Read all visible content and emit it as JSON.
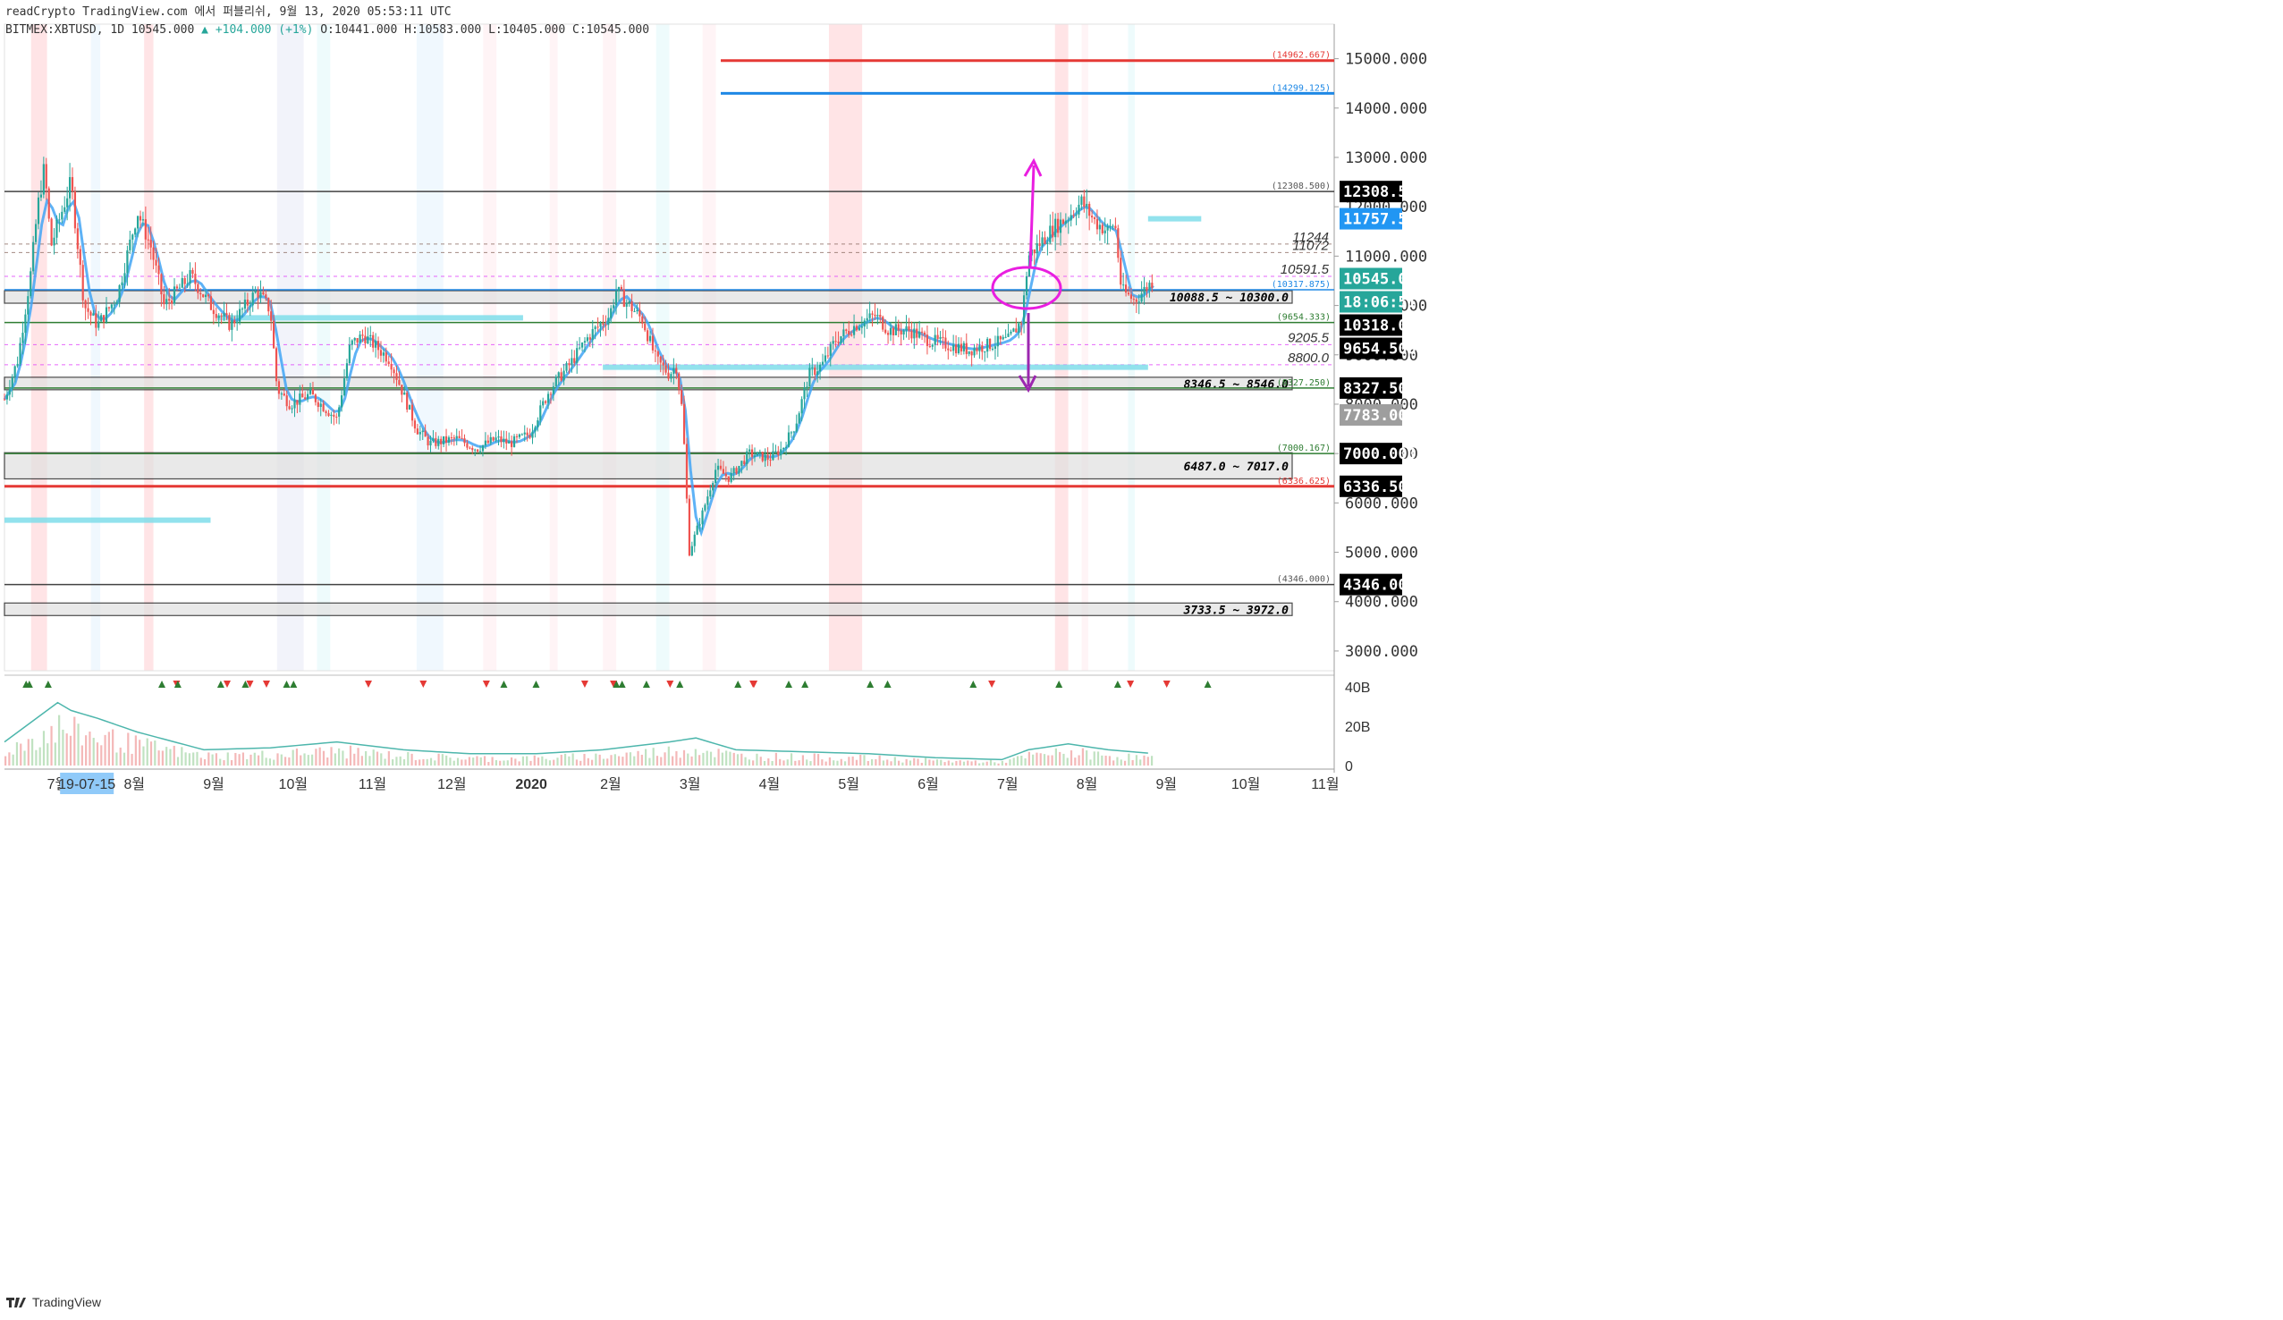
{
  "header": {
    "line1": "readCrypto TradingView.com 에서 퍼블리쉬, 9월 13, 2020 05:53:11 UTC",
    "symbol": "BITMEX:XBTUSD, 1D",
    "last": "10545.000",
    "change": "▲ +104.000 (+1%)",
    "ohlc": "O:10441.000 H:10583.000 L:10405.000 C:10545.000"
  },
  "footer": {
    "brand": "TradingView"
  },
  "chart_data": {
    "type": "candlestick",
    "symbol": "BITMEX:XBTUSD",
    "timeframe": "1D",
    "x_tick_labels": [
      "7월",
      "19-07-15",
      "8월",
      "9월",
      "10월",
      "11월",
      "12월",
      "2020",
      "2월",
      "3월",
      "4월",
      "5월",
      "6월",
      "7월",
      "8월",
      "9월",
      "10월",
      "11월"
    ],
    "y_ticks": [
      "15000.000",
      "14000.000",
      "13000.000",
      "12000.000",
      "11000.000",
      "10000.000",
      "9000.000",
      "8000.000",
      "7000.000",
      "6000.000",
      "5000.000",
      "4000.000",
      "3000.000"
    ],
    "ylim": [
      2600,
      15700
    ],
    "volume_ticks": [
      "40B",
      "20B",
      "0"
    ],
    "price_badges": [
      {
        "label": "12308.500",
        "value": 12308.5,
        "color": "#000000"
      },
      {
        "label": "11757.500",
        "value": 11757.5,
        "color": "#2196f3"
      },
      {
        "label": "10545.000",
        "value": 10545.0,
        "color": "#26a69a"
      },
      {
        "label": "18:06:51",
        "value": 10300.0,
        "color": "#26a69a"
      },
      {
        "label": "10318.000",
        "value": 10060.0,
        "color": "#000000"
      },
      {
        "label": "9654.500",
        "value": 9654.5,
        "color": "#000000"
      },
      {
        "label": "8327.500",
        "value": 8327.5,
        "color": "#000000"
      },
      {
        "label": "7783.000",
        "value": 7783.0,
        "color": "#9e9e9e"
      },
      {
        "label": "7000.000",
        "value": 7000.0,
        "color": "#000000"
      },
      {
        "label": "6336.500",
        "value": 6336.5,
        "color": "#000000"
      },
      {
        "label": "4346.000",
        "value": 4346.0,
        "color": "#000000"
      }
    ],
    "level_labels": [
      {
        "label": "(14962.667)",
        "value": 14962.667,
        "color": "#e53935"
      },
      {
        "label": "(14299.125)",
        "value": 14299.125,
        "color": "#1e88e5"
      },
      {
        "label": "(12308.500)",
        "value": 12308.5,
        "color": "#555555"
      },
      {
        "label": "(10317.875)",
        "value": 10317.875,
        "color": "#1e88e5"
      },
      {
        "label": "(9654.333)",
        "value": 9654.333,
        "color": "#2e7d32"
      },
      {
        "label": "(8327.250)",
        "value": 8327.25,
        "color": "#2e7d32"
      },
      {
        "label": "(7000.167)",
        "value": 7000.167,
        "color": "#2e7d32"
      },
      {
        "label": "(6336.625)",
        "value": 6336.625,
        "color": "#e53935"
      },
      {
        "label": "(4346.000)",
        "value": 4346.0,
        "color": "#555555"
      }
    ],
    "level_values": [
      {
        "label": "11244",
        "value": 11244
      },
      {
        "label": "11072",
        "value": 11072
      },
      {
        "label": "10591.5",
        "value": 10591.5
      },
      {
        "label": "9205.5",
        "value": 9205.5
      },
      {
        "label": "8800.0",
        "value": 8800.0
      }
    ],
    "zones": [
      {
        "label": "10088.5 ~ 10300.0",
        "low": 10088.5,
        "high": 10300.0
      },
      {
        "label": "8346.5 ~ 8546.0",
        "low": 8346.5,
        "high": 8546.0
      },
      {
        "label": "6487.0 ~ 7017.0",
        "low": 6487.0,
        "high": 7017.0
      },
      {
        "label": "3733.5 ~ 3972.0",
        "low": 3733.5,
        "high": 3972.0
      }
    ],
    "price_path": [
      [
        0.0,
        8100
      ],
      [
        0.01,
        8900
      ],
      [
        0.02,
        10700
      ],
      [
        0.025,
        12000
      ],
      [
        0.03,
        12800
      ],
      [
        0.035,
        11200
      ],
      [
        0.05,
        12500
      ],
      [
        0.06,
        10000
      ],
      [
        0.07,
        9600
      ],
      [
        0.085,
        10200
      ],
      [
        0.1,
        11900
      ],
      [
        0.11,
        11200
      ],
      [
        0.12,
        10000
      ],
      [
        0.14,
        10600
      ],
      [
        0.155,
        10000
      ],
      [
        0.17,
        9600
      ],
      [
        0.19,
        10300
      ],
      [
        0.2,
        9900
      ],
      [
        0.205,
        8300
      ],
      [
        0.215,
        8000
      ],
      [
        0.23,
        8200
      ],
      [
        0.25,
        7700
      ],
      [
        0.26,
        9200
      ],
      [
        0.27,
        9400
      ],
      [
        0.29,
        8900
      ],
      [
        0.3,
        8200
      ],
      [
        0.31,
        7500
      ],
      [
        0.32,
        7200
      ],
      [
        0.34,
        7300
      ],
      [
        0.355,
        7100
      ],
      [
        0.37,
        7300
      ],
      [
        0.38,
        7200
      ],
      [
        0.395,
        7400
      ],
      [
        0.41,
        8300
      ],
      [
        0.425,
        8800
      ],
      [
        0.44,
        9400
      ],
      [
        0.455,
        9800
      ],
      [
        0.46,
        10300
      ],
      [
        0.47,
        10000
      ],
      [
        0.48,
        9700
      ],
      [
        0.49,
        8900
      ],
      [
        0.5,
        8600
      ],
      [
        0.505,
        8800
      ],
      [
        0.51,
        7800
      ],
      [
        0.515,
        5000
      ],
      [
        0.525,
        5800
      ],
      [
        0.535,
        6700
      ],
      [
        0.545,
        6500
      ],
      [
        0.56,
        7000
      ],
      [
        0.575,
        6900
      ],
      [
        0.585,
        7100
      ],
      [
        0.595,
        7600
      ],
      [
        0.605,
        8600
      ],
      [
        0.615,
        8800
      ],
      [
        0.625,
        9300
      ],
      [
        0.64,
        9600
      ],
      [
        0.655,
        9800
      ],
      [
        0.665,
        9500
      ],
      [
        0.68,
        9500
      ],
      [
        0.695,
        9300
      ],
      [
        0.71,
        9200
      ],
      [
        0.725,
        9100
      ],
      [
        0.74,
        9200
      ],
      [
        0.755,
        9300
      ],
      [
        0.765,
        9700
      ],
      [
        0.77,
        11000
      ],
      [
        0.78,
        11300
      ],
      [
        0.79,
        11600
      ],
      [
        0.8,
        11800
      ],
      [
        0.81,
        12100
      ],
      [
        0.82,
        11700
      ],
      [
        0.83,
        11500
      ],
      [
        0.835,
        11700
      ],
      [
        0.84,
        10300
      ],
      [
        0.85,
        10100
      ],
      [
        0.86,
        10400
      ],
      [
        0.865,
        10545
      ]
    ],
    "volume_path": [
      [
        0.0,
        12
      ],
      [
        0.02,
        22
      ],
      [
        0.04,
        32
      ],
      [
        0.05,
        28
      ],
      [
        0.07,
        24
      ],
      [
        0.1,
        17
      ],
      [
        0.15,
        8
      ],
      [
        0.2,
        9
      ],
      [
        0.25,
        12
      ],
      [
        0.3,
        8
      ],
      [
        0.35,
        6
      ],
      [
        0.4,
        6
      ],
      [
        0.45,
        8
      ],
      [
        0.5,
        12
      ],
      [
        0.52,
        14
      ],
      [
        0.55,
        8
      ],
      [
        0.6,
        7
      ],
      [
        0.65,
        6
      ],
      [
        0.7,
        4
      ],
      [
        0.75,
        3
      ],
      [
        0.77,
        8
      ],
      [
        0.8,
        11
      ],
      [
        0.83,
        8
      ],
      [
        0.865,
        6
      ]
    ]
  }
}
